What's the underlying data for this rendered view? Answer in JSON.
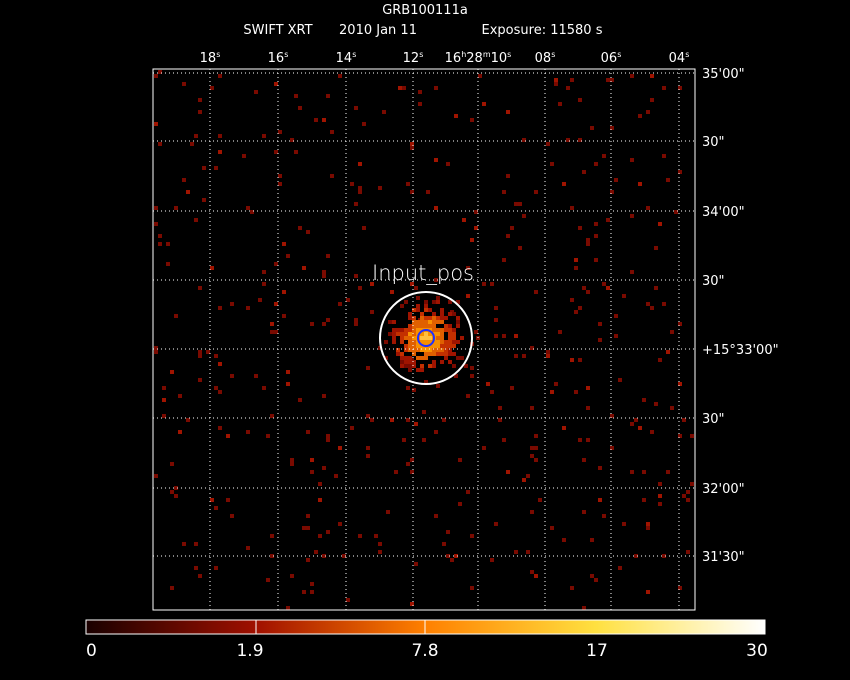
{
  "header": {
    "title": "GRB100111a",
    "instrument": "SWIFT XRT",
    "date": "2010 Jan 11",
    "exposure": "Exposure: 11580 s"
  },
  "ra_ticks": [
    [
      "18",
      "s"
    ],
    [
      "16",
      "s"
    ],
    [
      "14",
      "s"
    ],
    [
      "12",
      "s"
    ],
    [
      "16",
      "h",
      "28",
      "m",
      "10",
      "s"
    ],
    [
      "08",
      "s"
    ],
    [
      "06",
      "s"
    ],
    [
      "04",
      "s"
    ]
  ],
  "dec_ticks": [
    "35'00\"",
    "30\"",
    "34'00\"",
    "30\"",
    "+15°33'00\"",
    "30\"",
    "32'00\"",
    "31'30\""
  ],
  "annotation": "Input_pos",
  "colorbar": {
    "labels": [
      "0",
      "1.9",
      "7.8",
      "17",
      "30"
    ]
  }
}
